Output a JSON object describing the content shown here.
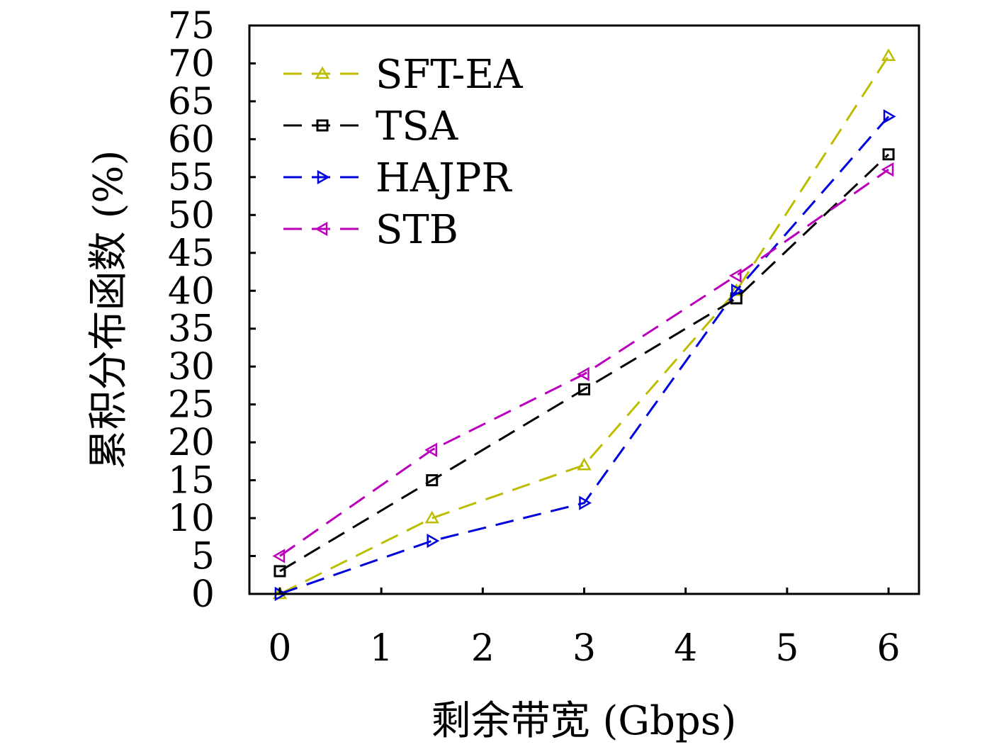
{
  "chart_data": {
    "type": "line",
    "title": "",
    "xlabel": "剩余带宽 (Gbps)",
    "ylabel": "累积分布函数 (%)",
    "xlim": [
      -0.3,
      6.3
    ],
    "ylim": [
      0,
      75
    ],
    "xticks": [
      0,
      1,
      2,
      3,
      4,
      5,
      6
    ],
    "yticks": [
      0,
      5,
      10,
      15,
      20,
      25,
      30,
      35,
      40,
      45,
      50,
      55,
      60,
      65,
      70,
      75
    ],
    "legend_position": "top-left",
    "series": [
      {
        "name": "SFT-EA",
        "color": "#bdbd00",
        "marker": "triangle-up",
        "x": [
          0,
          1.5,
          3,
          4.5,
          6
        ],
        "y": [
          0,
          10,
          17,
          40,
          71
        ]
      },
      {
        "name": "TSA",
        "color": "#000000",
        "marker": "square",
        "x": [
          0,
          1.5,
          3,
          4.5,
          6
        ],
        "y": [
          3,
          15,
          27,
          39,
          58
        ]
      },
      {
        "name": "HAJPR",
        "color": "#0000dd",
        "marker": "triangle-right",
        "x": [
          0,
          1.5,
          3,
          4.5,
          6
        ],
        "y": [
          0,
          7,
          12,
          40,
          63
        ]
      },
      {
        "name": "STB",
        "color": "#bb00bb",
        "marker": "triangle-left",
        "x": [
          0,
          1.5,
          3,
          4.5,
          6
        ],
        "y": [
          5,
          19,
          29,
          42,
          56
        ]
      }
    ]
  }
}
